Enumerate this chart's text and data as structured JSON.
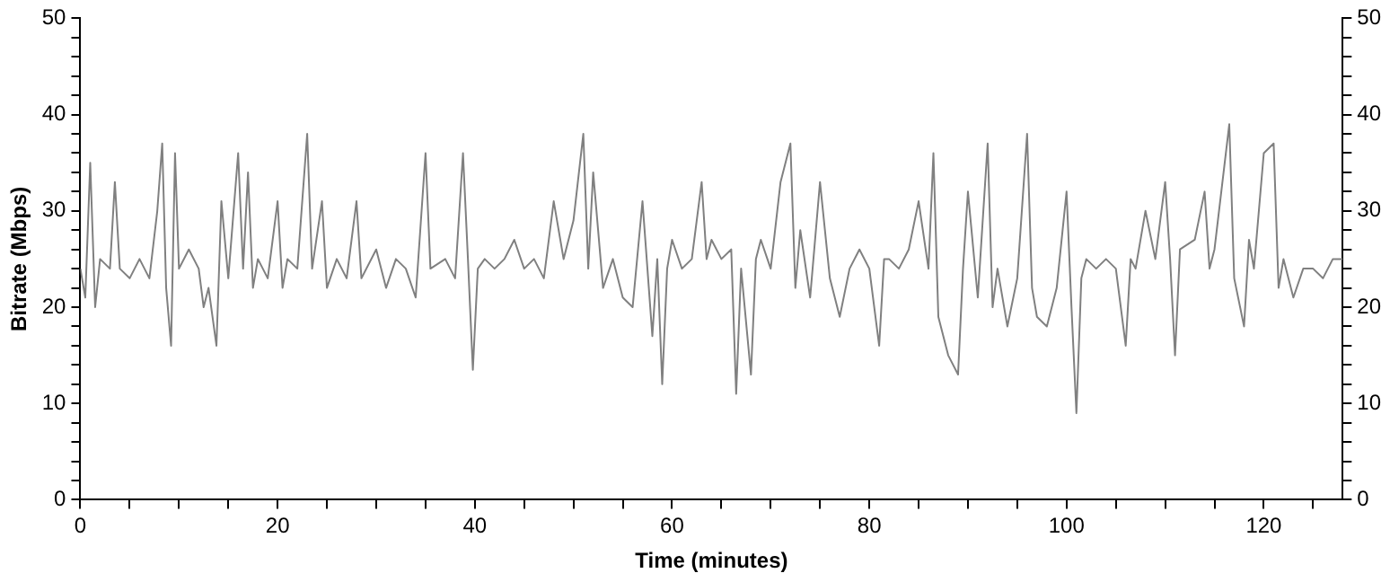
{
  "chart_data": {
    "type": "line",
    "xlabel": "Time (minutes)",
    "ylabel": "Bitrate (Mbps)",
    "marker": "none",
    "line_style": "solid",
    "xlim": [
      0,
      128
    ],
    "ylim": [
      0,
      50
    ],
    "y2lim": [
      0,
      50
    ],
    "xticks": [
      0,
      {
        "value": 5,
        "label": null
      },
      {
        "value": 10,
        "label": null
      },
      {
        "value": 15,
        "label": null
      },
      20,
      {
        "value": 25,
        "label": null
      },
      {
        "value": 30,
        "label": null
      },
      {
        "value": 35,
        "label": null
      },
      40,
      {
        "value": 45,
        "label": null
      },
      {
        "value": 50,
        "label": null
      },
      {
        "value": 55,
        "label": null
      },
      60,
      {
        "value": 65,
        "label": null
      },
      {
        "value": 70,
        "label": null
      },
      {
        "value": 75,
        "label": null
      },
      80,
      {
        "value": 85,
        "label": null
      },
      {
        "value": 90,
        "label": null
      },
      {
        "value": 95,
        "label": null
      },
      100,
      {
        "value": 105,
        "label": null
      },
      {
        "value": 110,
        "label": null
      },
      {
        "value": 115,
        "label": null
      },
      120,
      {
        "value": 125,
        "label": null
      }
    ],
    "yticks": [
      0,
      {
        "value": 2,
        "label": null
      },
      {
        "value": 4,
        "label": null
      },
      {
        "value": 6,
        "label": null
      },
      {
        "value": 8,
        "label": null
      },
      10,
      {
        "value": 12,
        "label": null
      },
      {
        "value": 14,
        "label": null
      },
      {
        "value": 16,
        "label": null
      },
      {
        "value": 18,
        "label": null
      },
      20,
      {
        "value": 22,
        "label": null
      },
      {
        "value": 24,
        "label": null
      },
      {
        "value": 26,
        "label": null
      },
      {
        "value": 28,
        "label": null
      },
      30,
      {
        "value": 32,
        "label": null
      },
      {
        "value": 34,
        "label": null
      },
      {
        "value": 36,
        "label": null
      },
      {
        "value": 38,
        "label": null
      },
      40,
      {
        "value": 42,
        "label": null
      },
      {
        "value": 44,
        "label": null
      },
      {
        "value": 46,
        "label": null
      },
      {
        "value": 48,
        "label": null
      },
      50
    ],
    "y2ticks": [
      0,
      {
        "value": 2,
        "label": null
      },
      {
        "value": 4,
        "label": null
      },
      {
        "value": 6,
        "label": null
      },
      {
        "value": 8,
        "label": null
      },
      10,
      {
        "value": 12,
        "label": null
      },
      {
        "value": 14,
        "label": null
      },
      {
        "value": 16,
        "label": null
      },
      {
        "value": 18,
        "label": null
      },
      20,
      {
        "value": 22,
        "label": null
      },
      {
        "value": 24,
        "label": null
      },
      {
        "value": 26,
        "label": null
      },
      {
        "value": 28,
        "label": null
      },
      30,
      {
        "value": 32,
        "label": null
      },
      {
        "value": 34,
        "label": null
      },
      {
        "value": 36,
        "label": null
      },
      {
        "value": 38,
        "label": null
      },
      40,
      {
        "value": 42,
        "label": null
      },
      {
        "value": 44,
        "label": null
      },
      {
        "value": 46,
        "label": null
      },
      {
        "value": 48,
        "label": null
      },
      50
    ],
    "series": [
      {
        "color": "#808080",
        "x": [
          0,
          0.5,
          1,
          1.5,
          2,
          3,
          3.5,
          4,
          5,
          6,
          7,
          7.8,
          8.3,
          8.7,
          9.2,
          9.6,
          10,
          11,
          12,
          12.5,
          13,
          13.8,
          14.3,
          15,
          16,
          16.5,
          17,
          17.5,
          18,
          19,
          20,
          20.5,
          21,
          22,
          23,
          23.5,
          24.5,
          25,
          26,
          27,
          28,
          28.5,
          30,
          31,
          32,
          33,
          34,
          35,
          35.5,
          37,
          38,
          38.8,
          39.3,
          39.8,
          40.3,
          41,
          42,
          43,
          44,
          45,
          46,
          47,
          48,
          49,
          50,
          51,
          51.5,
          52,
          53,
          54,
          55,
          56,
          57,
          58,
          58.5,
          59,
          59.5,
          60,
          61,
          62,
          63,
          63.5,
          64,
          65,
          66,
          66.5,
          67,
          68,
          68.5,
          69,
          70,
          71,
          72,
          72.5,
          73,
          74,
          75,
          76,
          77,
          78,
          79,
          80,
          81,
          81.5,
          82,
          83,
          84,
          85,
          86,
          86.5,
          87,
          88,
          89,
          89.5,
          90,
          91,
          92,
          92.5,
          93,
          94,
          95,
          96,
          96.5,
          97,
          98,
          99,
          100,
          100.5,
          101,
          101.5,
          102,
          103,
          104,
          105,
          106,
          106.5,
          107,
          108,
          109,
          110,
          110.5,
          111,
          111.5,
          113,
          114,
          114.5,
          115,
          116.5,
          117,
          118,
          118.5,
          119,
          120,
          121,
          121.5,
          122,
          123,
          124,
          125,
          126,
          127,
          128
        ],
        "values": [
          24,
          21,
          35,
          20,
          25,
          24,
          33,
          24,
          23,
          25,
          23,
          30,
          37,
          22,
          16,
          36,
          24,
          26,
          24,
          20,
          22,
          16,
          31,
          23,
          36,
          24,
          34,
          22,
          25,
          23,
          31,
          22,
          25,
          24,
          38,
          24,
          31,
          22,
          25,
          23,
          31,
          23,
          26,
          22,
          25,
          24,
          21,
          36,
          24,
          25,
          23,
          36,
          25,
          13.5,
          24,
          25,
          24,
          25,
          27,
          24,
          25,
          23,
          31,
          25,
          29,
          38,
          24,
          34,
          22,
          25,
          21,
          20,
          31,
          17,
          25,
          12,
          24,
          27,
          24,
          25,
          33,
          25,
          27,
          25,
          26,
          11,
          24,
          13,
          25,
          27,
          24,
          33,
          37,
          22,
          28,
          21,
          33,
          23,
          19,
          24,
          26,
          24,
          16,
          25,
          25,
          24,
          26,
          31,
          24,
          36,
          19,
          15,
          13,
          24,
          32,
          21,
          37,
          20,
          24,
          18,
          23,
          38,
          22,
          19,
          18,
          22,
          32,
          20,
          9,
          23,
          25,
          24,
          25,
          24,
          16,
          25,
          24,
          30,
          25,
          33,
          25,
          15,
          26,
          27,
          32,
          24,
          26,
          39,
          23,
          18,
          27,
          24,
          36,
          37,
          22,
          25,
          21,
          24,
          24,
          23,
          25,
          25
        ]
      }
    ]
  }
}
